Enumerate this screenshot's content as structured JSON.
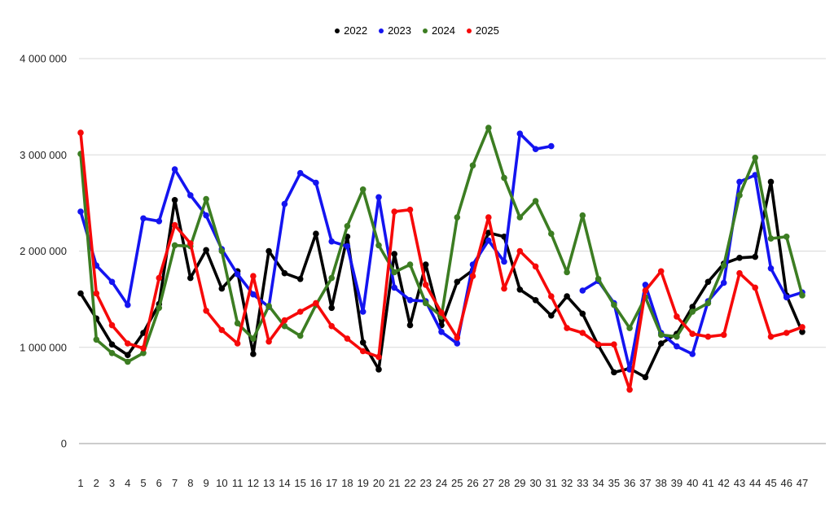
{
  "page": {
    "background": "#ffffff"
  },
  "chart_data": {
    "type": "line",
    "title": "",
    "xlabel": "",
    "ylabel": "",
    "x": [
      1,
      2,
      3,
      4,
      5,
      6,
      7,
      8,
      9,
      10,
      11,
      12,
      13,
      14,
      15,
      16,
      17,
      18,
      19,
      20,
      21,
      22,
      23,
      24,
      25,
      26,
      27,
      28,
      29,
      30,
      31,
      32,
      33,
      34,
      35,
      36,
      37,
      38,
      39,
      40,
      41,
      42,
      43,
      44,
      45,
      46,
      47
    ],
    "ylim": [
      0,
      4000000
    ],
    "yticks": [
      0,
      1000000,
      2000000,
      3000000,
      4000000
    ],
    "ytick_labels": [
      "0",
      "1 000 000",
      "2 000 000",
      "3 000 000",
      "4 000 000"
    ],
    "grid": true,
    "legend_position": "top-center",
    "series": [
      {
        "name": "2022",
        "color": "#000000",
        "values": [
          1560000,
          1300000,
          1030000,
          920000,
          1150000,
          1450000,
          2530000,
          1720000,
          2010000,
          1610000,
          1790000,
          930000,
          2000000,
          1770000,
          1710000,
          2180000,
          1410000,
          2150000,
          1050000,
          770000,
          1970000,
          1230000,
          1860000,
          1230000,
          1680000,
          1800000,
          2190000,
          2150000,
          1600000,
          1490000,
          1330000,
          1530000,
          1350000,
          1020000,
          740000,
          780000,
          690000,
          1040000,
          1140000,
          1420000,
          1680000,
          1870000,
          1930000,
          1940000,
          2720000,
          1540000,
          1160000
        ]
      },
      {
        "name": "2023",
        "color": "#1414f0",
        "values": [
          2410000,
          1850000,
          1680000,
          1440000,
          2340000,
          2310000,
          2850000,
          2580000,
          2370000,
          2020000,
          1760000,
          1550000,
          1420000,
          2490000,
          2810000,
          2710000,
          2100000,
          2050000,
          1370000,
          2560000,
          1620000,
          1490000,
          1480000,
          1160000,
          1040000,
          1860000,
          2110000,
          1890000,
          3220000,
          3060000,
          3090000,
          null,
          1590000,
          1690000,
          1460000,
          770000,
          1650000,
          1150000,
          1010000,
          930000,
          1480000,
          1670000,
          2720000,
          2790000,
          1820000,
          1520000,
          1570000
        ]
      },
      {
        "name": "2024",
        "color": "#3c7d22",
        "values": [
          3010000,
          1080000,
          940000,
          850000,
          940000,
          1410000,
          2060000,
          2050000,
          2540000,
          2000000,
          1250000,
          1090000,
          1430000,
          1220000,
          1120000,
          1440000,
          1720000,
          2260000,
          2640000,
          2060000,
          1780000,
          1860000,
          1460000,
          1320000,
          2350000,
          2890000,
          3280000,
          2760000,
          2350000,
          2520000,
          2180000,
          1780000,
          2370000,
          1710000,
          1440000,
          1200000,
          1520000,
          1130000,
          1110000,
          1370000,
          1460000,
          1850000,
          2580000,
          2970000,
          2130000,
          2150000,
          1540000
        ]
      },
      {
        "name": "2025",
        "color": "#f60909",
        "values": [
          3230000,
          1560000,
          1230000,
          1040000,
          990000,
          1720000,
          2270000,
          2080000,
          1380000,
          1180000,
          1040000,
          1740000,
          1060000,
          1280000,
          1370000,
          1460000,
          1220000,
          1090000,
          960000,
          900000,
          2410000,
          2430000,
          1650000,
          1360000,
          1100000,
          1740000,
          2350000,
          1610000,
          2000000,
          1840000,
          1530000,
          1200000,
          1150000,
          1030000,
          1030000,
          560000,
          1590000,
          1790000,
          1320000,
          1140000,
          1110000,
          1130000,
          1770000,
          1620000,
          1110000,
          1150000,
          1210000
        ]
      }
    ],
    "colors": {
      "gridline": "#d9d9d9",
      "axis_line": "#999999",
      "tick_text": "#1f1f1f"
    }
  }
}
